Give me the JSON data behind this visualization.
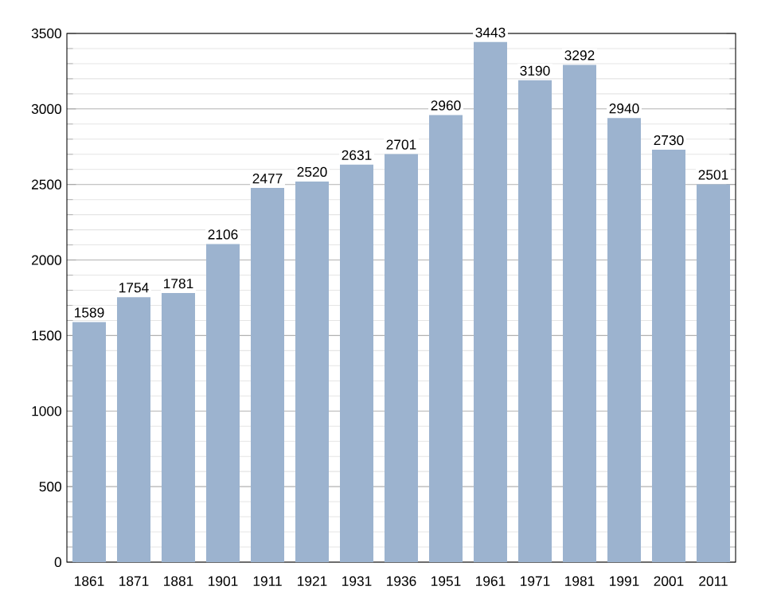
{
  "chart_data": {
    "type": "bar",
    "categories": [
      "1861",
      "1871",
      "1881",
      "1901",
      "1911",
      "1921",
      "1931",
      "1936",
      "1951",
      "1961",
      "1971",
      "1981",
      "1991",
      "2001",
      "2011"
    ],
    "values": [
      1589,
      1754,
      1781,
      2106,
      2477,
      2520,
      2631,
      2701,
      2960,
      3443,
      3190,
      3292,
      2940,
      2730,
      2501
    ],
    "color": "#9cb3cf",
    "ylim": [
      0,
      3500
    ],
    "yticks": [
      0,
      500,
      1000,
      1500,
      2000,
      2500,
      3000,
      3500
    ],
    "grid": "y",
    "data_labels": true
  }
}
